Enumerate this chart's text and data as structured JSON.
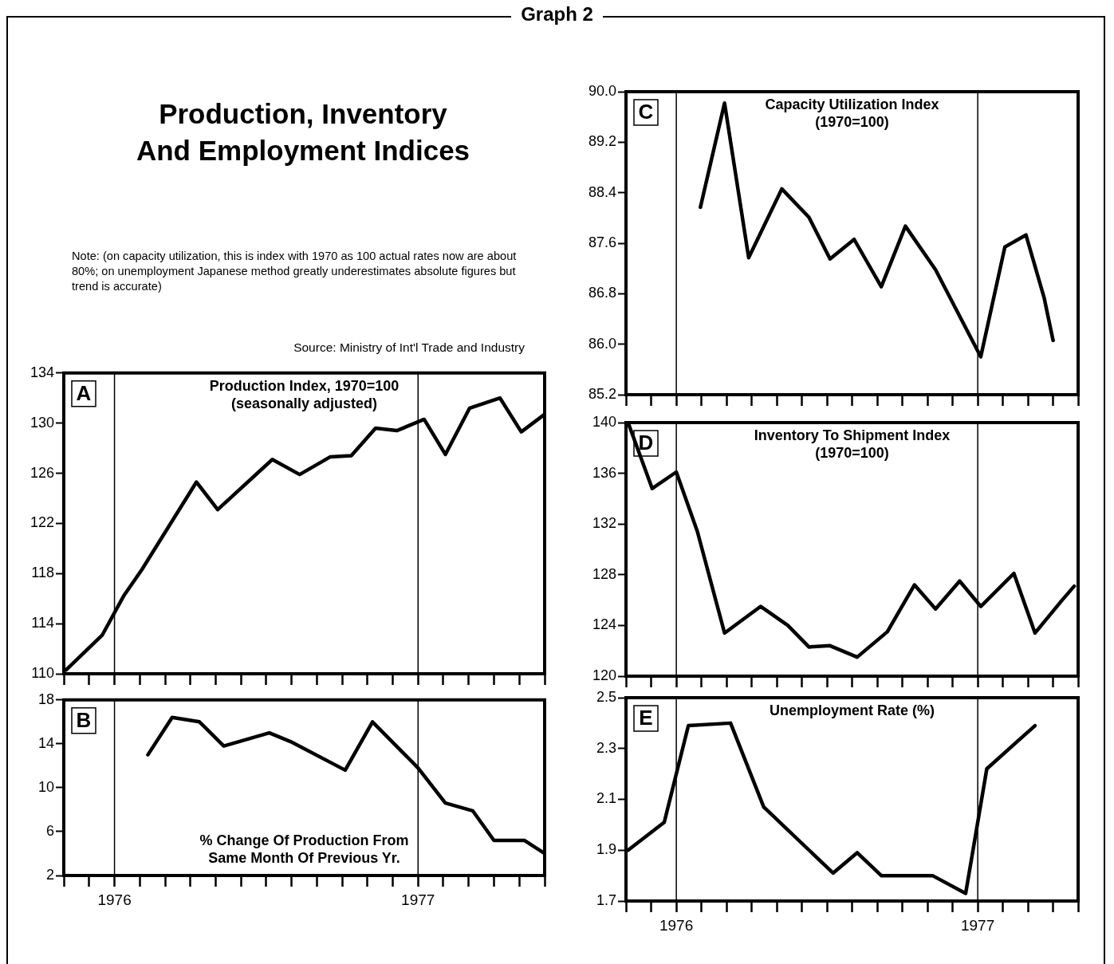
{
  "chart_data": [
    {
      "type": "other",
      "title": "Graph 2",
      "subtitle": "Production, Inventory And Employment Indices",
      "annotations": [
        "Note: (on capacity utilization, this is index with 1970 as 100 actual rates now are about 80%; on unemployment Japanese method greatly underestimates absolute figures but trend is accurate)",
        "Source: Ministry of Int'l Trade and Industry"
      ]
    },
    {
      "type": "line",
      "title": "Production Index, 1970=100",
      "subtitle": "(seasonally adjusted)",
      "annotations": [
        "A"
      ],
      "color": "#000000",
      "marker": "none",
      "tick_labels": "y",
      "x": [
        1975.84,
        1975.96,
        1976.03,
        1976.09,
        1976.27,
        1976.34,
        1976.52,
        1976.61,
        1976.71,
        1976.78,
        1976.86,
        1976.93,
        1977.02,
        1977.09,
        1977.17,
        1977.27,
        1977.34,
        1977.417
      ],
      "values": [
        110.3,
        113.1,
        116.2,
        118.3,
        125.3,
        123.1,
        127.1,
        125.9,
        127.3,
        127.4,
        129.6,
        129.4,
        130.3,
        127.5,
        131.2,
        132.0,
        129.3,
        130.7
      ],
      "xlim": [
        1975.833,
        1977.417
      ],
      "ylim": [
        110,
        134
      ],
      "yticks": [
        110,
        114,
        118,
        122,
        126,
        130,
        134
      ],
      "xticks": [
        {
          "value": 1975.833,
          "label": null
        },
        {
          "value": 1975.917,
          "label": null
        },
        {
          "value": 1976,
          "label": null
        },
        {
          "value": 1976.083,
          "label": null
        },
        {
          "value": 1976.167,
          "label": null
        },
        {
          "value": 1976.25,
          "label": null
        },
        {
          "value": 1976.333,
          "label": null
        },
        {
          "value": 1976.417,
          "label": null
        },
        {
          "value": 1976.5,
          "label": null
        },
        {
          "value": 1976.583,
          "label": null
        },
        {
          "value": 1976.667,
          "label": null
        },
        {
          "value": 1976.75,
          "label": null
        },
        {
          "value": 1976.833,
          "label": null
        },
        {
          "value": 1976.917,
          "label": null
        },
        {
          "value": 1977,
          "label": null
        },
        {
          "value": 1977.083,
          "label": null
        },
        {
          "value": 1977.167,
          "label": null
        },
        {
          "value": 1977.25,
          "label": null
        },
        {
          "value": 1977.333,
          "label": null
        },
        {
          "value": 1977.417,
          "label": null
        }
      ],
      "ref_lines": [
        {
          "axis": "x",
          "value": 1976,
          "color": "#000000"
        },
        {
          "axis": "x",
          "value": 1977,
          "color": "#000000"
        }
      ]
    },
    {
      "type": "line",
      "title": "% Change Of Production From Same Month Of Previous Yr.",
      "annotations": [
        "B"
      ],
      "color": "#000000",
      "marker": "none",
      "x": [
        1976.11,
        1976.19,
        1976.28,
        1976.36,
        1976.51,
        1976.58,
        1976.76,
        1976.85,
        1977.0,
        1977.09,
        1977.18,
        1977.25,
        1977.35,
        1977.417
      ],
      "values": [
        13.0,
        16.4,
        16.0,
        13.8,
        15.0,
        14.2,
        11.6,
        16.0,
        11.8,
        8.6,
        7.9,
        5.2,
        5.2,
        4.0
      ],
      "xlim": [
        1975.833,
        1977.417
      ],
      "ylim": [
        2,
        18
      ],
      "yticks": [
        2,
        6,
        10,
        14,
        18
      ],
      "xticks": [
        {
          "value": 1975.833,
          "label": null
        },
        {
          "value": 1975.917,
          "label": null
        },
        {
          "value": 1976,
          "label": "1976"
        },
        {
          "value": 1976.083,
          "label": null
        },
        {
          "value": 1976.167,
          "label": null
        },
        {
          "value": 1976.25,
          "label": null
        },
        {
          "value": 1976.333,
          "label": null
        },
        {
          "value": 1976.417,
          "label": null
        },
        {
          "value": 1976.5,
          "label": null
        },
        {
          "value": 1976.583,
          "label": null
        },
        {
          "value": 1976.667,
          "label": null
        },
        {
          "value": 1976.75,
          "label": null
        },
        {
          "value": 1976.833,
          "label": null
        },
        {
          "value": 1976.917,
          "label": null
        },
        {
          "value": 1977,
          "label": "1977"
        },
        {
          "value": 1977.083,
          "label": null
        },
        {
          "value": 1977.167,
          "label": null
        },
        {
          "value": 1977.25,
          "label": null
        },
        {
          "value": 1977.333,
          "label": null
        },
        {
          "value": 1977.417,
          "label": null
        }
      ],
      "ref_lines": [
        {
          "axis": "x",
          "value": 1976,
          "color": "#000000"
        },
        {
          "axis": "x",
          "value": 1977,
          "color": "#000000"
        }
      ]
    },
    {
      "type": "line",
      "title": "Capacity Utilization Index",
      "subtitle": "(1970=100)",
      "annotations": [
        "C"
      ],
      "color": "#000000",
      "marker": "none",
      "tick_labels": "y",
      "x": [
        1976.08,
        1976.16,
        1976.24,
        1976.35,
        1976.44,
        1976.51,
        1976.59,
        1976.68,
        1976.76,
        1976.86,
        1977.01,
        1977.09,
        1977.16,
        1977.22,
        1977.25
      ],
      "values": [
        88.17,
        89.82,
        87.37,
        88.46,
        88.01,
        87.35,
        87.66,
        86.91,
        87.87,
        87.18,
        85.8,
        87.54,
        87.73,
        86.74,
        86.06
      ],
      "xlim": [
        1975.833,
        1977.333
      ],
      "ylim": [
        85.2,
        90
      ],
      "yticks": [
        85.2,
        {
          "value": 86,
          "label": "86.0"
        },
        86.8,
        87.6,
        88.4,
        89.2,
        {
          "value": 90,
          "label": "90.0"
        }
      ],
      "xticks": [
        {
          "value": 1975.833,
          "label": null
        },
        {
          "value": 1975.917,
          "label": null
        },
        {
          "value": 1976,
          "label": null
        },
        {
          "value": 1976.083,
          "label": null
        },
        {
          "value": 1976.167,
          "label": null
        },
        {
          "value": 1976.25,
          "label": null
        },
        {
          "value": 1976.333,
          "label": null
        },
        {
          "value": 1976.417,
          "label": null
        },
        {
          "value": 1976.5,
          "label": null
        },
        {
          "value": 1976.583,
          "label": null
        },
        {
          "value": 1976.667,
          "label": null
        },
        {
          "value": 1976.75,
          "label": null
        },
        {
          "value": 1976.833,
          "label": null
        },
        {
          "value": 1976.917,
          "label": null
        },
        {
          "value": 1977,
          "label": null
        },
        {
          "value": 1977.083,
          "label": null
        },
        {
          "value": 1977.167,
          "label": null
        },
        {
          "value": 1977.25,
          "label": null
        },
        {
          "value": 1977.333,
          "label": null
        }
      ],
      "ref_lines": [
        {
          "axis": "x",
          "value": 1976,
          "color": "#000000"
        },
        {
          "axis": "x",
          "value": 1977,
          "color": "#000000"
        }
      ]
    },
    {
      "type": "line",
      "title": "Inventory To Shipment Index",
      "subtitle": "(1970=100)",
      "annotations": [
        "D"
      ],
      "color": "#000000",
      "marker": "none",
      "tick_labels": "y",
      "x": [
        1975.84,
        1975.92,
        1976.0,
        1976.07,
        1976.16,
        1976.28,
        1976.37,
        1976.44,
        1976.51,
        1976.6,
        1976.7,
        1976.79,
        1976.86,
        1976.94,
        1977.01,
        1977.12,
        1977.19,
        1977.28,
        1977.32
      ],
      "values": [
        140.0,
        134.8,
        136.1,
        131.4,
        123.4,
        125.5,
        124.0,
        122.3,
        122.4,
        121.5,
        123.5,
        127.2,
        125.3,
        127.5,
        125.5,
        128.1,
        123.4,
        126.0,
        127.1
      ],
      "xlim": [
        1975.833,
        1977.333
      ],
      "ylim": [
        120,
        140
      ],
      "yticks": [
        120,
        124,
        128,
        132,
        136,
        140
      ],
      "xticks": [
        {
          "value": 1975.833,
          "label": null
        },
        {
          "value": 1975.917,
          "label": null
        },
        {
          "value": 1976,
          "label": null
        },
        {
          "value": 1976.083,
          "label": null
        },
        {
          "value": 1976.167,
          "label": null
        },
        {
          "value": 1976.25,
          "label": null
        },
        {
          "value": 1976.333,
          "label": null
        },
        {
          "value": 1976.417,
          "label": null
        },
        {
          "value": 1976.5,
          "label": null
        },
        {
          "value": 1976.583,
          "label": null
        },
        {
          "value": 1976.667,
          "label": null
        },
        {
          "value": 1976.75,
          "label": null
        },
        {
          "value": 1976.833,
          "label": null
        },
        {
          "value": 1976.917,
          "label": null
        },
        {
          "value": 1977,
          "label": null
        },
        {
          "value": 1977.083,
          "label": null
        },
        {
          "value": 1977.167,
          "label": null
        },
        {
          "value": 1977.25,
          "label": null
        },
        {
          "value": 1977.333,
          "label": null
        }
      ],
      "ref_lines": [
        {
          "axis": "x",
          "value": 1976,
          "color": "#000000"
        },
        {
          "axis": "x",
          "value": 1977,
          "color": "#000000"
        }
      ]
    },
    {
      "type": "line",
      "title": "Unemployment Rate (%)",
      "annotations": [
        "E"
      ],
      "color": "#000000",
      "marker": "none",
      "x": [
        1975.84,
        1975.96,
        1976.04,
        1976.18,
        1976.29,
        1976.52,
        1976.6,
        1976.68,
        1976.85,
        1976.96,
        1977.03,
        1977.19
      ],
      "values": [
        1.9,
        2.01,
        2.39,
        2.4,
        2.07,
        1.81,
        1.89,
        1.8,
        1.8,
        1.73,
        2.22,
        2.39
      ],
      "xlim": [
        1975.833,
        1977.333
      ],
      "ylim": [
        1.7,
        2.5
      ],
      "yticks": [
        1.7,
        1.9,
        2.1,
        2.3,
        2.5
      ],
      "xticks": [
        {
          "value": 1975.833,
          "label": null
        },
        {
          "value": 1975.917,
          "label": null
        },
        {
          "value": 1976,
          "label": "1976"
        },
        {
          "value": 1976.083,
          "label": null
        },
        {
          "value": 1976.167,
          "label": null
        },
        {
          "value": 1976.25,
          "label": null
        },
        {
          "value": 1976.333,
          "label": null
        },
        {
          "value": 1976.417,
          "label": null
        },
        {
          "value": 1976.5,
          "label": null
        },
        {
          "value": 1976.583,
          "label": null
        },
        {
          "value": 1976.667,
          "label": null
        },
        {
          "value": 1976.75,
          "label": null
        },
        {
          "value": 1976.833,
          "label": null
        },
        {
          "value": 1976.917,
          "label": null
        },
        {
          "value": 1977,
          "label": "1977"
        },
        {
          "value": 1977.083,
          "label": null
        },
        {
          "value": 1977.167,
          "label": null
        },
        {
          "value": 1977.25,
          "label": null
        },
        {
          "value": 1977.333,
          "label": null
        }
      ],
      "ref_lines": [
        {
          "axis": "x",
          "value": 1976,
          "color": "#000000"
        },
        {
          "axis": "x",
          "value": 1977,
          "color": "#000000"
        }
      ]
    }
  ]
}
